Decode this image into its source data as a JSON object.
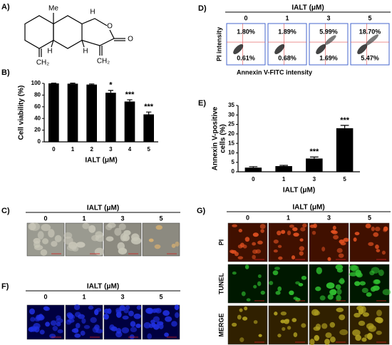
{
  "panels": {
    "a": "A)",
    "b": "B)",
    "c": "C)",
    "d": "D)",
    "e": "E)",
    "f": "F)",
    "g": "G)"
  },
  "structure": {
    "labels": [
      "Me",
      "H",
      "O",
      "O",
      "H",
      "CH₂",
      "H",
      "CH₂"
    ]
  },
  "chart_data": [
    {
      "type": "bar",
      "ylabel": "Cell viability (%)",
      "xlabel": "IALT (μM)",
      "categories": [
        "0",
        "1",
        "2",
        "3",
        "4",
        "5"
      ],
      "values": [
        100,
        99.5,
        98,
        84,
        69,
        47
      ],
      "errors": [
        0.5,
        1,
        1,
        4,
        3,
        4
      ],
      "annotations": [
        null,
        null,
        null,
        "*",
        "***",
        "***"
      ],
      "ylim": [
        0,
        100
      ],
      "yticks": [
        0,
        20,
        40,
        60,
        80,
        100
      ],
      "color": "#000000"
    },
    {
      "type": "bar",
      "ylabel": [
        "Annexin V-positive",
        "cells (%)"
      ],
      "xlabel": "IALT (μM)",
      "categories": [
        "0",
        "1",
        "3",
        "5"
      ],
      "values": [
        2.2,
        3.0,
        7.0,
        23
      ],
      "errors": [
        0.5,
        0.4,
        0.8,
        1.5
      ],
      "annotations": [
        null,
        null,
        "***",
        "***"
      ],
      "ylim": [
        0,
        35
      ],
      "yticks": [
        0,
        5,
        10,
        15,
        20,
        25,
        30,
        35
      ],
      "color": "#000000"
    }
  ],
  "flow": {
    "title": "IALT (μM)",
    "concentrations": [
      "0",
      "1",
      "3",
      "5"
    ],
    "upper": [
      "1.80%",
      "1.89%",
      "5.99%",
      "18.70%"
    ],
    "lower": [
      "0.61%",
      "0.68%",
      "1.69%",
      "5.47%"
    ],
    "ylabel": "PI intensity",
    "xlabel": "Annexin V-FITC intensity"
  },
  "phase": {
    "title": "IALT (μM)",
    "concentrations": [
      "0",
      "1",
      "3",
      "5"
    ]
  },
  "dapi": {
    "title": "IALT (μM)",
    "concentrations": [
      "0",
      "1",
      "3",
      "5"
    ]
  },
  "tunel": {
    "title": "IALT (μM)",
    "concentrations": [
      "0",
      "1",
      "3",
      "5"
    ],
    "rows": [
      "PI",
      "TUNEL",
      "MERGE"
    ]
  }
}
